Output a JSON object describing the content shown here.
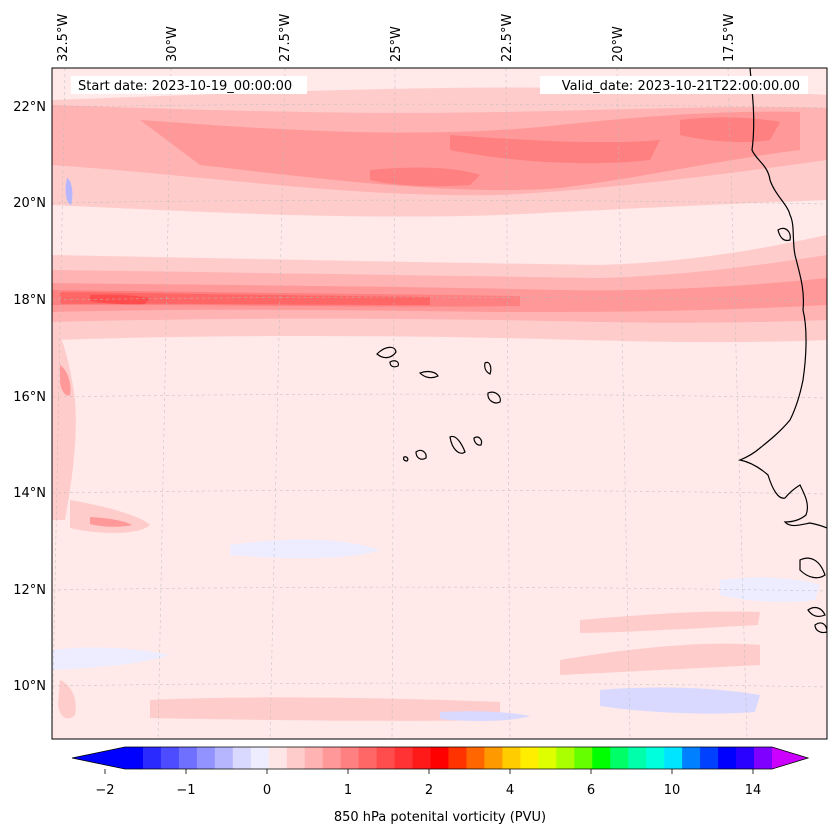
{
  "map": {
    "start_date": "Start date: 2023-10-19_00:00:00",
    "valid_date": "Valid_date: 2023-10-21T22:00:00.00",
    "lon_labels": [
      "32.5°W",
      "30°W",
      "27.5°W",
      "25°W",
      "22.5°W",
      "20°W",
      "17.5°W"
    ],
    "lat_labels": [
      "22°N",
      "20°N",
      "18°N",
      "16°N",
      "14°N",
      "12°N",
      "10°N"
    ]
  },
  "colorbar": {
    "label": "850 hPa potenital vorticity (PVU)",
    "tick_labels": [
      "−2",
      "−1",
      "0",
      "1",
      "2",
      "4",
      "6",
      "10",
      "14"
    ],
    "colors": [
      "#0000ff",
      "#2a2aff",
      "#4d4dff",
      "#7070ff",
      "#9393ff",
      "#b6b6ff",
      "#d9d9ff",
      "#ededff",
      "#ffe6e6",
      "#ffcccc",
      "#ffb3b3",
      "#ff9999",
      "#ff8080",
      "#ff6666",
      "#ff4d4d",
      "#ff3333",
      "#ff1a1a",
      "#ff0000",
      "#ff3300",
      "#ff6600",
      "#ff9900",
      "#ffcc00",
      "#ffee00",
      "#ddff00",
      "#aaff00",
      "#66ff00",
      "#00ff00",
      "#00ff66",
      "#00ffaa",
      "#00ffdd",
      "#00e5ff",
      "#0080ff",
      "#0040ff",
      "#0000ff",
      "#2a00ff",
      "#8000ff"
    ],
    "extend_low_color": "#0000ff",
    "extend_high_color": "#cc00ff"
  }
}
